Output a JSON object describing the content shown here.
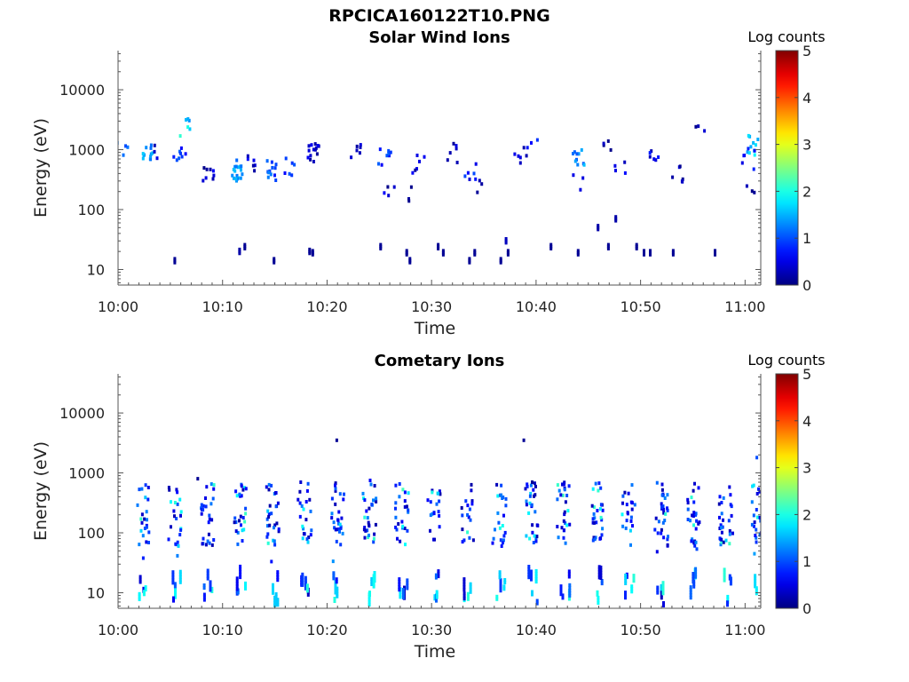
{
  "figure_title": "RPCICA160122T10.PNG",
  "chart_data": [
    {
      "type": "heatmap",
      "title": "Solar Wind Ions",
      "xlabel": "Time",
      "ylabel": "Energy (eV)",
      "x_ticks": [
        "10:00",
        "10:10",
        "10:20",
        "10:30",
        "10:40",
        "10:50",
        "11:00"
      ],
      "x_range_minutes": [
        0,
        61.5
      ],
      "y_scale": "log",
      "y_ticks": [
        "10",
        "100",
        "1000",
        "10000"
      ],
      "y_range_eV": [
        5.5,
        45000
      ],
      "colorbar": {
        "label": "Log counts",
        "ticks": [
          "0",
          "1",
          "2",
          "3",
          "4",
          "5"
        ],
        "range": [
          0,
          5
        ],
        "colormap": "jet"
      },
      "clusters": [
        {
          "t": 0.2,
          "e": 950,
          "v": 1.1,
          "n": 4
        },
        {
          "t": 2.6,
          "e": 900,
          "v": 1.4,
          "n": 12
        },
        {
          "t": 3.5,
          "e": 1000,
          "v": 0.4,
          "n": 3
        },
        {
          "t": 5.8,
          "e": 900,
          "v": 0.9,
          "n": 8
        },
        {
          "t": 6.2,
          "e": 2800,
          "v": 1.6,
          "n": 4
        },
        {
          "t": 6.2,
          "e": 1600,
          "v": 2.0,
          "n": 2
        },
        {
          "t": 8.6,
          "e": 350,
          "v": 0.3,
          "n": 8
        },
        {
          "t": 11.4,
          "e": 450,
          "v": 1.3,
          "n": 18
        },
        {
          "t": 12.6,
          "e": 650,
          "v": 0.4,
          "n": 6
        },
        {
          "t": 14.4,
          "e": 450,
          "v": 1.0,
          "n": 12
        },
        {
          "t": 16.2,
          "e": 550,
          "v": 0.8,
          "n": 6
        },
        {
          "t": 18.6,
          "e": 900,
          "v": 0.4,
          "n": 14
        },
        {
          "t": 22.5,
          "e": 950,
          "v": 0.3,
          "n": 6
        },
        {
          "t": 25.4,
          "e": 800,
          "v": 0.8,
          "n": 8
        },
        {
          "t": 25.8,
          "e": 250,
          "v": 0.3,
          "n": 4
        },
        {
          "t": 28.6,
          "e": 600,
          "v": 0.4,
          "n": 6
        },
        {
          "t": 28.2,
          "e": 180,
          "v": 0.3,
          "n": 3
        },
        {
          "t": 32.0,
          "e": 900,
          "v": 0.4,
          "n": 6
        },
        {
          "t": 33.6,
          "e": 450,
          "v": 0.7,
          "n": 6
        },
        {
          "t": 34.5,
          "e": 270,
          "v": 0.2,
          "n": 3
        },
        {
          "t": 38.4,
          "e": 800,
          "v": 0.3,
          "n": 6
        },
        {
          "t": 39.5,
          "e": 1000,
          "v": 0.6,
          "n": 3
        },
        {
          "t": 44.0,
          "e": 700,
          "v": 1.3,
          "n": 10
        },
        {
          "t": 44.0,
          "e": 260,
          "v": 0.5,
          "n": 3
        },
        {
          "t": 46.5,
          "e": 1300,
          "v": 0.3,
          "n": 4
        },
        {
          "t": 48.0,
          "e": 600,
          "v": 0.6,
          "n": 4
        },
        {
          "t": 51.0,
          "e": 700,
          "v": 0.5,
          "n": 6
        },
        {
          "t": 53.5,
          "e": 400,
          "v": 0.3,
          "n": 6
        },
        {
          "t": 55.5,
          "e": 1800,
          "v": 0.2,
          "n": 3
        },
        {
          "t": 60.5,
          "e": 1200,
          "v": 1.6,
          "n": 10
        },
        {
          "t": 60.2,
          "e": 700,
          "v": 0.5,
          "n": 6
        },
        {
          "t": 60.3,
          "e": 170,
          "v": 0.2,
          "n": 3
        }
      ],
      "low_band": [
        {
          "t": 5.3,
          "e": 14,
          "v": 0.1
        },
        {
          "t": 11.5,
          "e": 20,
          "v": 0.2
        },
        {
          "t": 12.0,
          "e": 24,
          "v": 0.1
        },
        {
          "t": 14.8,
          "e": 14,
          "v": 0.1
        },
        {
          "t": 18.2,
          "e": 20,
          "v": 0.1
        },
        {
          "t": 18.5,
          "e": 19,
          "v": 0.1
        },
        {
          "t": 25.0,
          "e": 24,
          "v": 0.1
        },
        {
          "t": 27.5,
          "e": 19,
          "v": 0.1
        },
        {
          "t": 27.8,
          "e": 14,
          "v": 0.1
        },
        {
          "t": 30.5,
          "e": 24,
          "v": 0.1
        },
        {
          "t": 31.0,
          "e": 19,
          "v": 0.1
        },
        {
          "t": 33.5,
          "e": 14,
          "v": 0.1
        },
        {
          "t": 34.0,
          "e": 19,
          "v": 0.1
        },
        {
          "t": 36.5,
          "e": 14,
          "v": 0.1
        },
        {
          "t": 37.2,
          "e": 19,
          "v": 0.1
        },
        {
          "t": 37.0,
          "e": 30,
          "v": 0.3
        },
        {
          "t": 41.3,
          "e": 24,
          "v": 0.1
        },
        {
          "t": 43.9,
          "e": 19,
          "v": 0.1
        },
        {
          "t": 45.8,
          "e": 50,
          "v": 0.2
        },
        {
          "t": 46.8,
          "e": 24,
          "v": 0.1
        },
        {
          "t": 47.5,
          "e": 70,
          "v": 0.2
        },
        {
          "t": 49.5,
          "e": 24,
          "v": 0.1
        },
        {
          "t": 50.2,
          "e": 19,
          "v": 0.1
        },
        {
          "t": 50.8,
          "e": 19,
          "v": 0.1
        },
        {
          "t": 53.0,
          "e": 19,
          "v": 0.1
        },
        {
          "t": 57.0,
          "e": 19,
          "v": 0.1
        }
      ]
    },
    {
      "type": "heatmap",
      "title": "Cometary Ions",
      "xlabel": "Time",
      "ylabel": "Energy (eV)",
      "x_ticks": [
        "10:00",
        "10:10",
        "10:20",
        "10:30",
        "10:40",
        "10:50",
        "11:00"
      ],
      "x_range_minutes": [
        0,
        61.5
      ],
      "y_scale": "log",
      "y_ticks": [
        "10",
        "100",
        "1000",
        "10000"
      ],
      "y_range_eV": [
        5.5,
        45000
      ],
      "colorbar": {
        "label": "Log counts",
        "ticks": [
          "0",
          "1",
          "2",
          "3",
          "4",
          "5"
        ],
        "range": [
          0,
          5
        ],
        "colormap": "jet"
      },
      "sweep_period_minutes": 3.1,
      "sweep_start_minutes": 1.8,
      "high_band_eV": [
        60,
        700
      ],
      "low_band_eV": [
        6,
        40
      ],
      "extra_points": [
        {
          "t": 7.5,
          "e": 800,
          "v": 0.1
        },
        {
          "t": 20.8,
          "e": 3500,
          "v": 0.1
        },
        {
          "t": 38.7,
          "e": 3500,
          "v": 0.1
        },
        {
          "t": 39.5,
          "e": 700,
          "v": 0.1
        },
        {
          "t": 61.0,
          "e": 1800,
          "v": 1.0
        },
        {
          "t": 24.0,
          "e": 750,
          "v": 0.6
        }
      ]
    }
  ]
}
